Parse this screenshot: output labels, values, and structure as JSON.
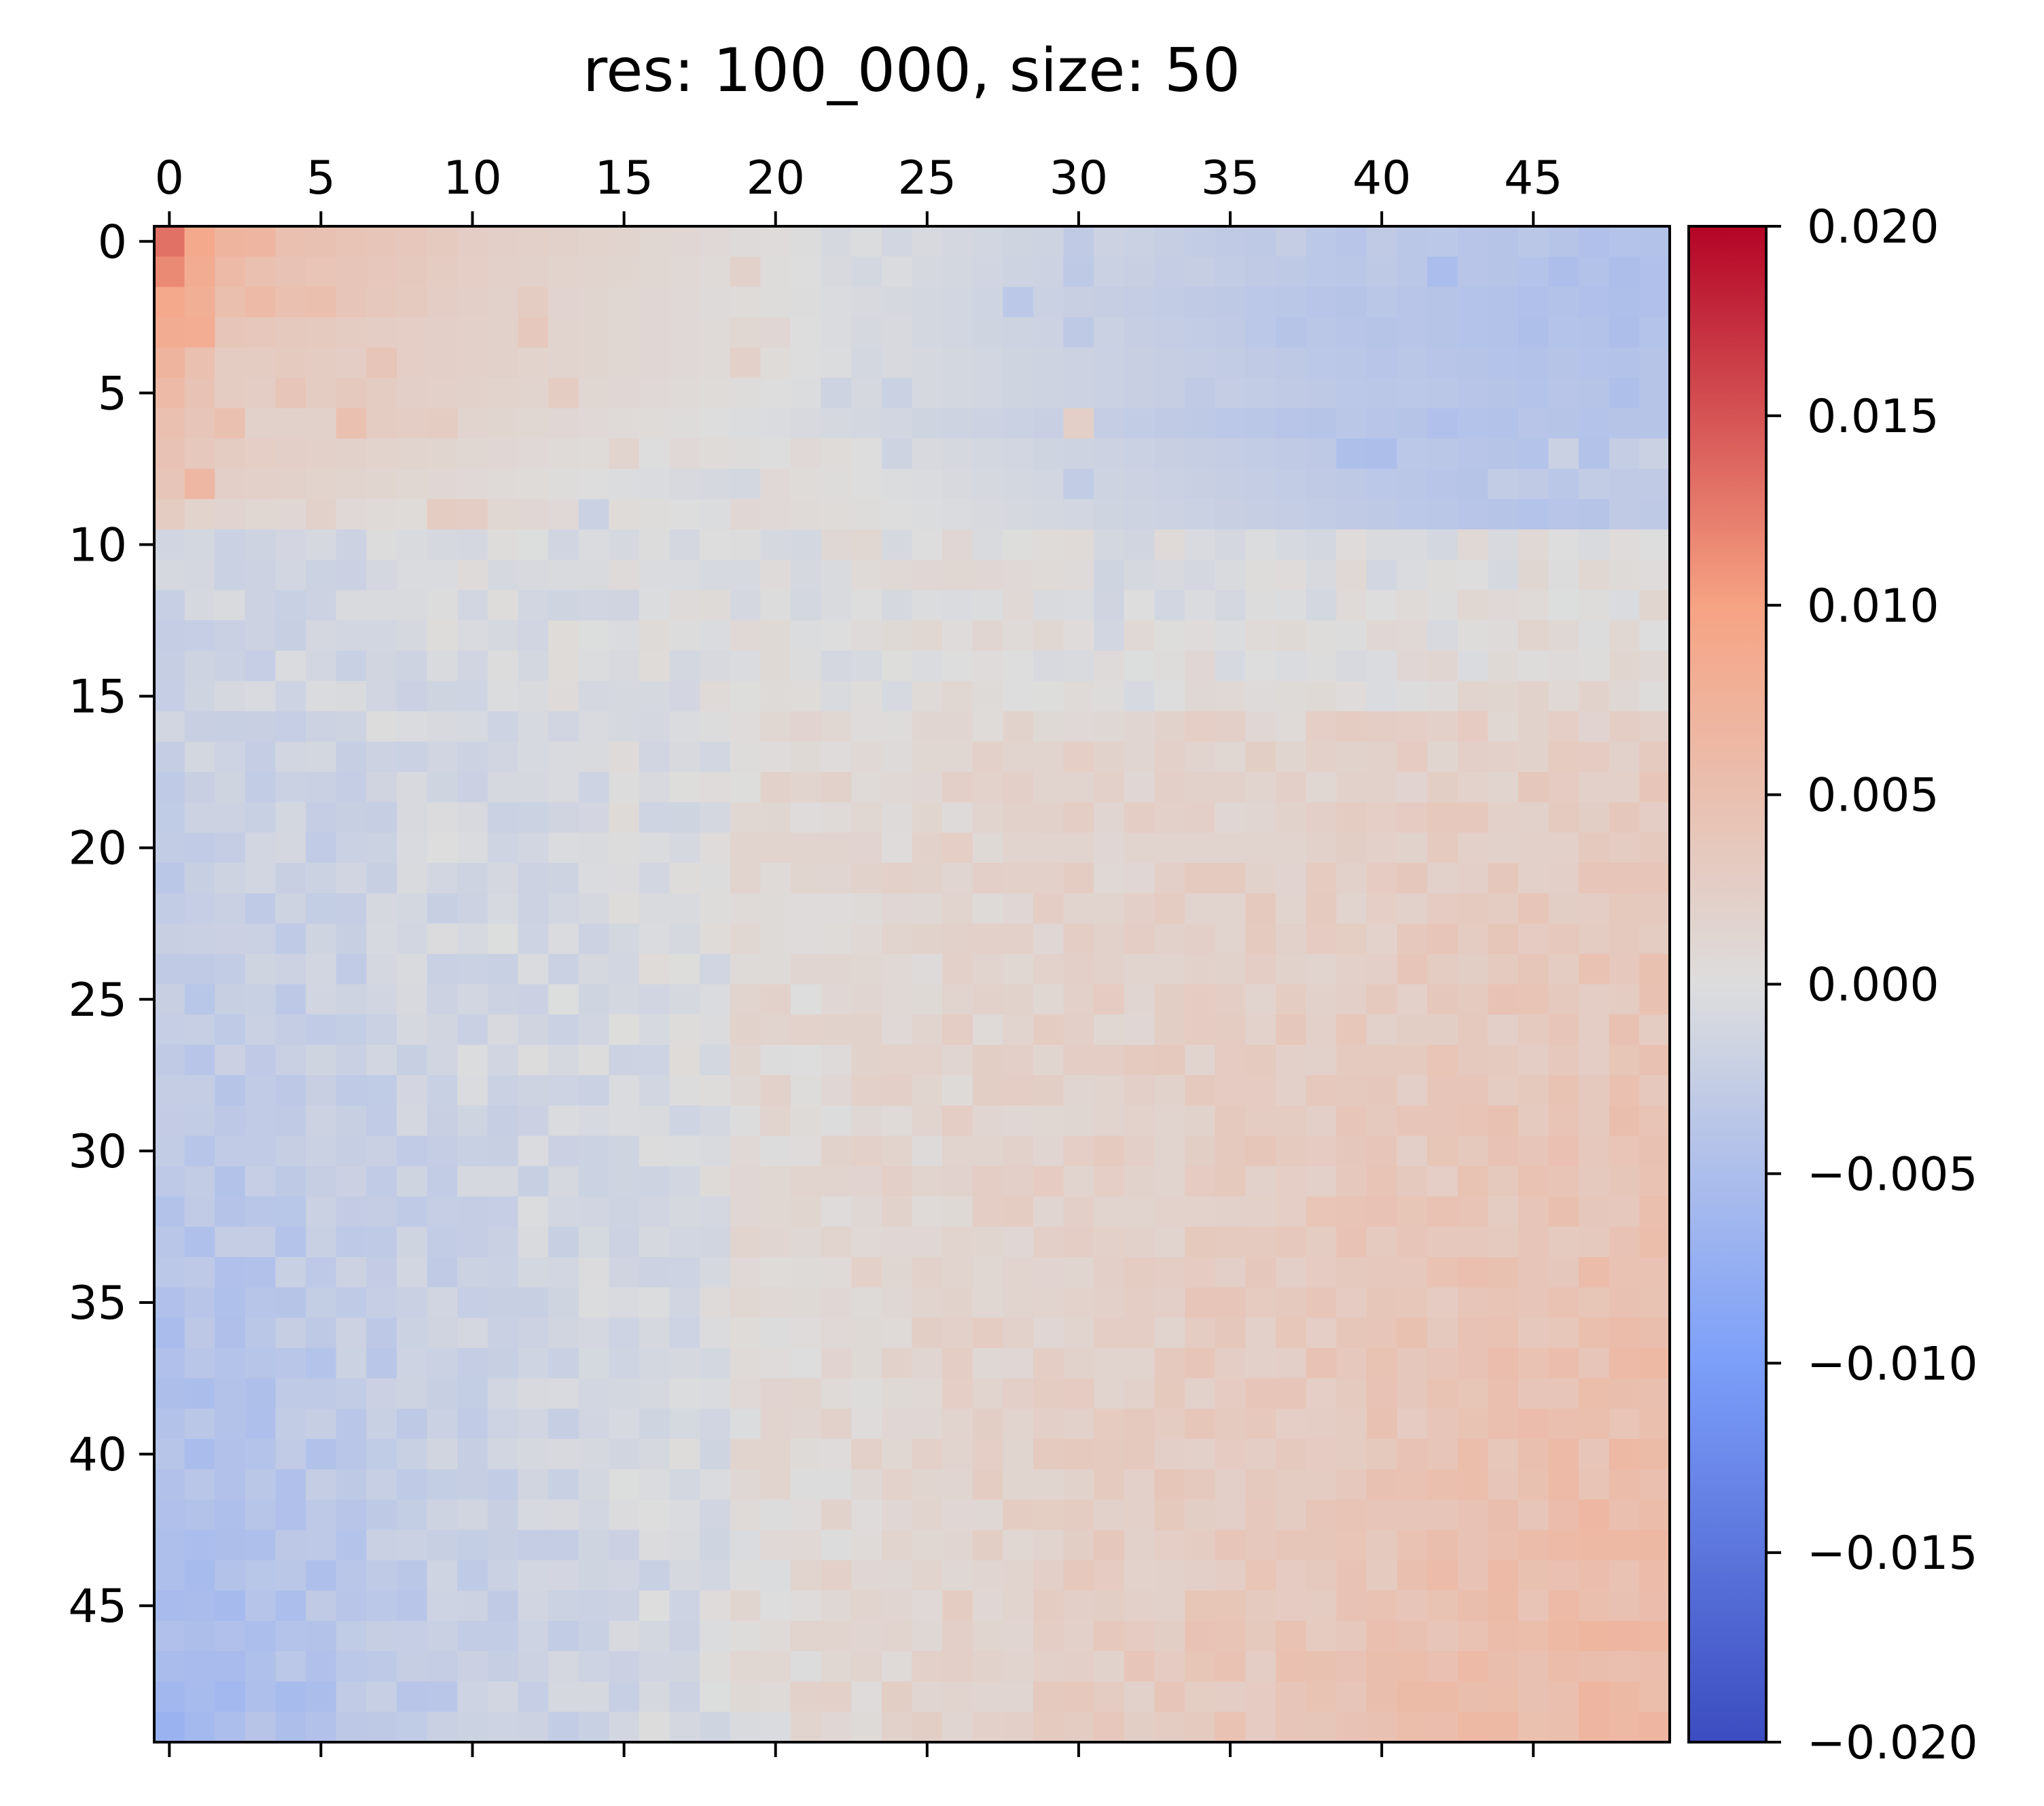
{
  "chart_data": {
    "type": "heatmap",
    "title": "res: 100_000, size: 50",
    "rows": 50,
    "cols": 50,
    "colormap": "coolwarm",
    "vmin": -0.02,
    "vmax": 0.02,
    "x_ticks": [
      0,
      5,
      10,
      15,
      20,
      25,
      30,
      35,
      40,
      45
    ],
    "x_tick_labels": [
      "0",
      "5",
      "10",
      "15",
      "20",
      "25",
      "30",
      "35",
      "40",
      "45"
    ],
    "y_ticks": [
      0,
      5,
      10,
      15,
      20,
      25,
      30,
      35,
      40,
      45
    ],
    "y_tick_labels": [
      "0",
      "5",
      "10",
      "15",
      "20",
      "25",
      "30",
      "35",
      "40",
      "45"
    ],
    "x_axis_position": "top",
    "colorbar": {
      "position": "right",
      "ticks": [
        0.02,
        0.015,
        0.01,
        0.005,
        0.0,
        -0.005,
        -0.01,
        -0.015,
        -0.02
      ],
      "tick_labels": [
        "0.020",
        "0.015",
        "0.010",
        "0.005",
        "0.000",
        "−0.005",
        "−0.010",
        "−0.015",
        "−0.020"
      ]
    },
    "grid": false,
    "legend": "none",
    "colors": {
      "low": "#3b4cc0",
      "mid": "#dddddd",
      "high": "#b40426"
    },
    "values_description_free": true,
    "values": [
      [
        0.0132,
        0.009,
        0.0071,
        0.0067,
        0.005,
        0.0048,
        0.0043,
        0.004,
        0.0038,
        0.0032,
        0.0028,
        0.0025,
        0.0023,
        0.002,
        0.0018,
        0.0016,
        0.0012,
        0.001,
        0.0008,
        0.0005,
        0.0003,
        0.0001,
        -0.0008,
        -0.0002,
        -0.0012,
        -0.0006,
        -0.0009,
        -0.0011,
        -0.0014,
        -0.0016,
        -0.003,
        -0.0018,
        -0.002,
        -0.0024,
        -0.0028,
        -0.003,
        -0.0032,
        -0.0026,
        -0.0034,
        -0.0038,
        -0.003,
        -0.0036,
        -0.0034,
        -0.0038,
        -0.004,
        -0.0036,
        -0.004,
        -0.0046,
        -0.0042,
        -0.0044
      ],
      [
        0.0116,
        0.0084,
        0.006,
        0.005,
        0.0045,
        0.0042,
        0.004,
        0.0038,
        0.0035,
        0.003,
        0.0026,
        0.0022,
        0.002,
        0.0018,
        0.0016,
        0.0014,
        0.0011,
        0.0009,
        0.0007,
        0.002,
        0.0002,
        0.0,
        -0.0006,
        -0.001,
        -0.0004,
        -0.0008,
        -0.001,
        -0.0013,
        -0.0016,
        -0.0018,
        -0.0032,
        -0.002,
        -0.0022,
        -0.0026,
        -0.0024,
        -0.0028,
        -0.003,
        -0.0032,
        -0.0034,
        -0.0036,
        -0.0032,
        -0.0035,
        -0.0052,
        -0.0038,
        -0.004,
        -0.0042,
        -0.005,
        -0.0044,
        -0.005,
        -0.0046
      ],
      [
        0.009,
        0.008,
        0.0052,
        0.006,
        0.005,
        0.0052,
        0.004,
        0.0036,
        0.0032,
        0.0028,
        0.0025,
        0.002,
        0.003,
        0.0015,
        0.0014,
        0.0012,
        0.001,
        0.0008,
        0.0005,
        0.0004,
        0.0002,
        -0.0001,
        -0.0004,
        -0.0006,
        -0.0008,
        -0.001,
        -0.0012,
        -0.0015,
        -0.0034,
        -0.002,
        -0.0022,
        -0.0024,
        -0.0026,
        -0.0028,
        -0.003,
        -0.0032,
        -0.0034,
        -0.0036,
        -0.0038,
        -0.004,
        -0.0036,
        -0.0038,
        -0.004,
        -0.0042,
        -0.0044,
        -0.0046,
        -0.0044,
        -0.0046,
        -0.0048,
        -0.0046
      ],
      [
        0.0085,
        0.0082,
        0.004,
        0.0038,
        0.0035,
        0.0033,
        0.003,
        0.0028,
        0.0026,
        0.0024,
        0.0022,
        0.002,
        0.0036,
        0.0016,
        0.0014,
        0.0012,
        0.001,
        0.0008,
        0.0006,
        0.0012,
        0.001,
        0.0,
        -0.0004,
        -0.0008,
        -0.0006,
        -0.001,
        -0.0012,
        -0.0014,
        -0.0016,
        -0.0018,
        -0.0032,
        -0.002,
        -0.0024,
        -0.0026,
        -0.0028,
        -0.003,
        -0.0034,
        -0.004,
        -0.0036,
        -0.0038,
        -0.004,
        -0.0038,
        -0.004,
        -0.0042,
        -0.0044,
        -0.0048,
        -0.0042,
        -0.0044,
        -0.005,
        -0.0042
      ],
      [
        0.007,
        0.005,
        0.003,
        0.003,
        0.0032,
        0.003,
        0.0028,
        0.004,
        0.0026,
        0.0024,
        0.0022,
        0.002,
        0.0018,
        0.0016,
        0.0014,
        0.0012,
        0.001,
        0.0008,
        0.0006,
        0.0022,
        0.0004,
        0.0,
        -0.0002,
        -0.001,
        -0.0006,
        -0.0008,
        -0.001,
        -0.0012,
        -0.0014,
        -0.0016,
        -0.0018,
        -0.002,
        -0.0022,
        -0.0024,
        -0.0026,
        -0.0028,
        -0.003,
        -0.0032,
        -0.0034,
        -0.0036,
        -0.0038,
        -0.0036,
        -0.0038,
        -0.004,
        -0.0042,
        -0.0044,
        -0.004,
        -0.0042,
        -0.0044,
        -0.004
      ],
      [
        0.006,
        0.0045,
        0.003,
        0.0028,
        0.004,
        0.003,
        0.0034,
        0.003,
        0.0024,
        0.0022,
        0.002,
        0.0018,
        0.0016,
        0.003,
        0.0012,
        0.001,
        0.0008,
        0.0006,
        0.0004,
        0.0002,
        0.0,
        -0.0002,
        -0.0016,
        -0.0008,
        -0.002,
        -0.0008,
        -0.001,
        -0.0012,
        -0.0014,
        -0.0016,
        -0.0018,
        -0.002,
        -0.0022,
        -0.0024,
        -0.003,
        -0.0026,
        -0.0028,
        -0.003,
        -0.0032,
        -0.0034,
        -0.0036,
        -0.0034,
        -0.0036,
        -0.0038,
        -0.004,
        -0.0042,
        -0.0038,
        -0.004,
        -0.0048,
        -0.004
      ],
      [
        0.005,
        0.004,
        0.005,
        0.002,
        0.002,
        0.002,
        0.005,
        0.003,
        0.0028,
        0.003,
        0.0016,
        0.0014,
        0.0012,
        0.001,
        0.0008,
        0.0006,
        0.0004,
        0.0002,
        0.0,
        -0.0002,
        -0.0004,
        -0.0006,
        -0.0008,
        -0.001,
        -0.0012,
        -0.0014,
        -0.0016,
        -0.0018,
        -0.002,
        -0.0022,
        0.0024,
        -0.0026,
        -0.0028,
        -0.003,
        -0.0032,
        -0.0034,
        -0.0036,
        -0.0038,
        -0.004,
        -0.0036,
        -0.0038,
        -0.004,
        -0.0046,
        -0.0042,
        -0.0044,
        -0.0038,
        -0.004,
        -0.0042,
        -0.004,
        -0.004
      ],
      [
        0.0045,
        0.0036,
        0.003,
        0.0026,
        0.0024,
        0.0022,
        0.002,
        0.0018,
        0.0016,
        0.0014,
        0.0012,
        0.001,
        0.0008,
        0.0006,
        0.0004,
        0.0016,
        0.0,
        0.0008,
        0.0004,
        0.0002,
        0.0,
        0.0008,
        0.0004,
        0.0,
        -0.0016,
        -0.0006,
        -0.0008,
        -0.001,
        -0.0012,
        -0.0014,
        -0.0016,
        -0.0018,
        -0.002,
        -0.0022,
        -0.0024,
        -0.0026,
        -0.0028,
        -0.003,
        -0.0032,
        -0.0048,
        -0.005,
        -0.0034,
        -0.0036,
        -0.0038,
        -0.004,
        -0.0042,
        -0.002,
        -0.0044,
        -0.0026,
        -0.002
      ],
      [
        0.004,
        0.0065,
        0.0025,
        0.0022,
        0.002,
        0.0018,
        0.0016,
        0.0014,
        0.0012,
        0.001,
        0.0008,
        0.0006,
        0.0004,
        0.0002,
        0.0,
        -0.0002,
        -0.0004,
        -0.0006,
        -0.0008,
        -0.001,
        0.0008,
        0.0004,
        0.0002,
        0.0,
        -0.0002,
        -0.0004,
        -0.0006,
        -0.0008,
        -0.001,
        -0.0012,
        -0.0028,
        -0.0016,
        -0.0018,
        -0.002,
        -0.0022,
        -0.0024,
        -0.0026,
        -0.0028,
        -0.003,
        -0.0032,
        -0.0034,
        -0.0036,
        -0.0038,
        -0.004,
        -0.0028,
        -0.003,
        -0.0036,
        -0.0028,
        -0.003,
        -0.003
      ],
      [
        0.003,
        0.0018,
        0.0015,
        0.0012,
        0.001,
        0.002,
        0.0008,
        0.0006,
        0.0004,
        0.003,
        0.0028,
        0.0012,
        0.001,
        0.0008,
        -0.002,
        0.0004,
        0.0002,
        0.0,
        -0.0002,
        0.001,
        0.0008,
        0.0006,
        0.0004,
        0.0002,
        0.0,
        -0.0002,
        -0.0004,
        -0.0006,
        -0.0008,
        -0.001,
        -0.0012,
        -0.0014,
        -0.0016,
        -0.0018,
        -0.002,
        -0.0022,
        -0.0024,
        -0.0026,
        -0.0028,
        -0.003,
        -0.0032,
        -0.0034,
        -0.0036,
        -0.0038,
        -0.004,
        -0.0042,
        -0.0038,
        -0.004,
        -0.003,
        -0.0032
      ]
    ],
    "rows_10_to_49_values_note_free": true
  }
}
